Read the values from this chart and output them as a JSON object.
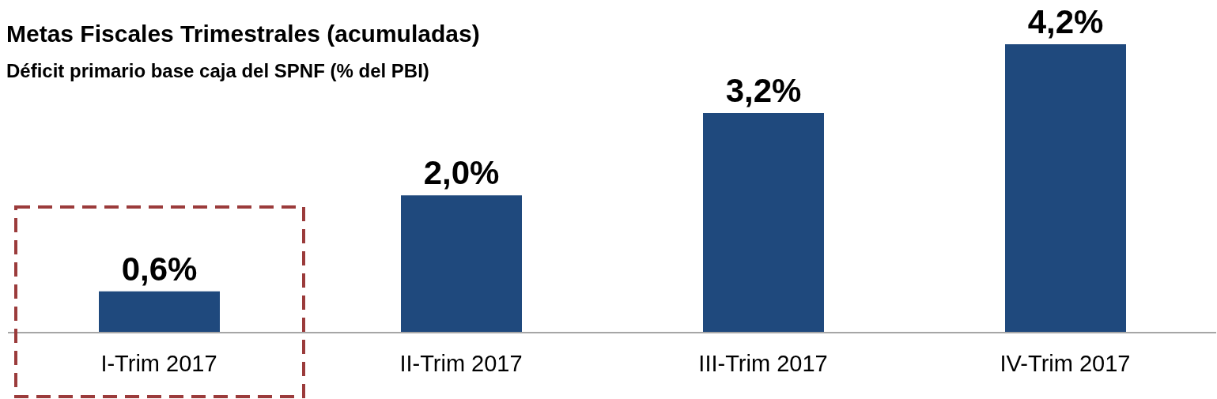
{
  "chart_data": {
    "type": "bar",
    "title": "Metas Fiscales Trimestrales (acumuladas)",
    "subtitle": "Déficit primario base caja del SPNF (% del PBI)",
    "categories": [
      "I-Trim 2017",
      "II-Trim 2017",
      "III-Trim 2017",
      "IV-Trim 2017"
    ],
    "values": [
      0.6,
      2.0,
      3.2,
      4.2
    ],
    "value_labels": [
      "0,6%",
      "2,0%",
      "3,2%",
      "4,2%"
    ],
    "color": "#1f497d",
    "grid": false,
    "legend": false
  }
}
